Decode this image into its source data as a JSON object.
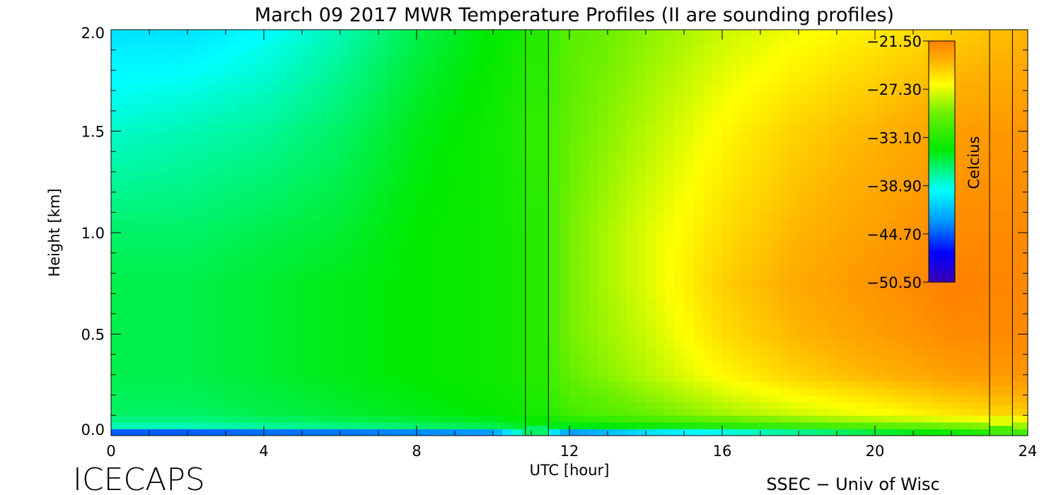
{
  "chart_data": {
    "type": "heatmap",
    "title": "March 09 2017 MWR Temperature Profiles (II are sounding profiles)",
    "xlabel": "UTC [hour]",
    "ylabel": "Height [km]",
    "xlim": [
      0,
      24
    ],
    "ylim": [
      0,
      2.0
    ],
    "x_ticks": [
      0,
      4,
      8,
      12,
      16,
      20,
      24
    ],
    "x_tick_labels": [
      "0",
      "4",
      "8",
      "12",
      "16",
      "20",
      "24"
    ],
    "y_ticks": [
      0,
      0.5,
      1.0,
      1.5,
      2.0
    ],
    "y_tick_labels": [
      "0.0",
      "0.5",
      "1.0",
      "1.5",
      "2.0"
    ],
    "colorbar": {
      "label": "Celcius",
      "min": -50.5,
      "max": -21.5,
      "tick_values": [
        -21.5,
        -27.3,
        -33.1,
        -38.9,
        -44.7,
        -50.5
      ],
      "tick_labels": [
        "−21.50",
        "−27.30",
        "−33.10",
        "−38.90",
        "−44.70",
        "−50.50"
      ]
    },
    "sounding_profiles": [
      {
        "start_hour": 10.85,
        "end_hour": 11.45
      },
      {
        "start_hour": 23.0,
        "end_hour": 23.6
      }
    ],
    "temperature_grid": {
      "hours": [
        0,
        2,
        4,
        6,
        8,
        10,
        11,
        12,
        14,
        16,
        18,
        20,
        22,
        24
      ],
      "heights_km": [
        0.0,
        0.05,
        0.1,
        0.3,
        0.5,
        0.75,
        1.0,
        1.5,
        2.0
      ],
      "values_c": [
        [
          -48.0,
          -48.0,
          -47.5,
          -47.5,
          -47.0,
          -46.5,
          -36.5,
          -47.0,
          -44.0,
          -42.0,
          -40.0,
          -38.0,
          -36.0,
          -33.0
        ],
        [
          -38.0,
          -38.0,
          -37.5,
          -37.0,
          -36.5,
          -36.0,
          -35.0,
          -35.0,
          -34.0,
          -33.0,
          -32.0,
          -31.0,
          -30.0,
          -29.0
        ],
        [
          -36.5,
          -36.5,
          -36.0,
          -35.5,
          -35.0,
          -34.5,
          -34.0,
          -32.0,
          -30.5,
          -29.0,
          -28.0,
          -27.0,
          -26.0,
          -25.0
        ],
        [
          -36.0,
          -36.0,
          -35.5,
          -35.0,
          -34.5,
          -34.0,
          -33.5,
          -30.5,
          -28.5,
          -26.5,
          -25.0,
          -24.0,
          -23.0,
          -22.5
        ],
        [
          -36.0,
          -36.0,
          -35.5,
          -35.0,
          -34.5,
          -34.0,
          -33.5,
          -30.0,
          -28.0,
          -25.5,
          -24.0,
          -23.0,
          -22.0,
          -22.0
        ],
        [
          -36.0,
          -36.0,
          -35.5,
          -35.0,
          -34.5,
          -34.0,
          -33.5,
          -30.0,
          -27.5,
          -25.0,
          -23.5,
          -22.5,
          -21.5,
          -22.0
        ],
        [
          -36.5,
          -36.5,
          -36.0,
          -35.5,
          -34.5,
          -34.0,
          -33.5,
          -30.0,
          -27.5,
          -25.5,
          -24.0,
          -23.0,
          -22.0,
          -22.0
        ],
        [
          -38.5,
          -38.0,
          -37.5,
          -36.5,
          -35.0,
          -34.0,
          -33.0,
          -30.5,
          -28.5,
          -26.5,
          -25.0,
          -24.0,
          -23.0,
          -22.5
        ],
        [
          -40.5,
          -40.5,
          -39.5,
          -38.0,
          -36.0,
          -34.5,
          -33.5,
          -31.0,
          -29.5,
          -28.0,
          -27.0,
          -26.0,
          -25.0,
          -24.0
        ]
      ]
    }
  },
  "footer": {
    "left_text": "ICECAPS",
    "right_text": "SSEC − Univ of Wisc"
  }
}
